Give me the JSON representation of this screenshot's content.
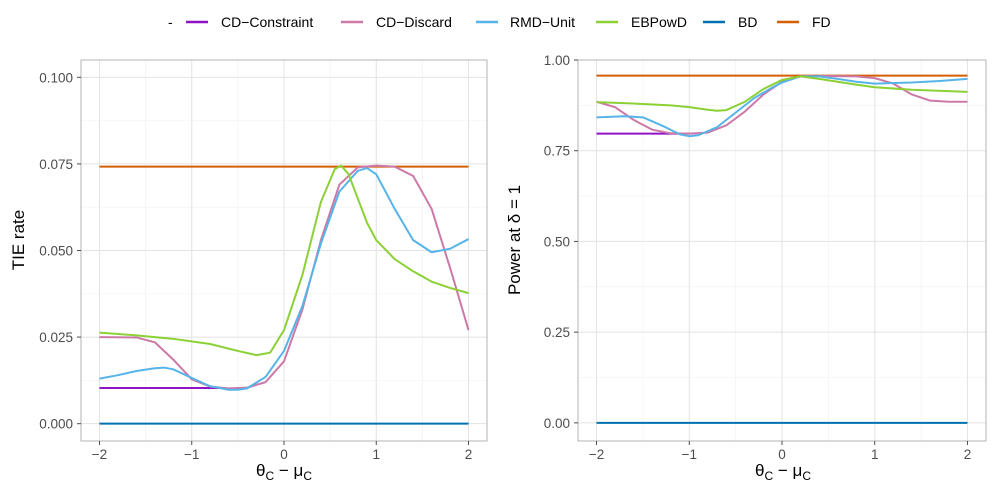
{
  "legend": {
    "title": "-",
    "entries": [
      "CD−Constraint",
      "CD−Discard",
      "RMD−Unit",
      "EBPowD",
      "BD",
      "FD"
    ]
  },
  "chart_data": [
    {
      "type": "line",
      "ylabel": "TIE rate",
      "xlabel_main": "θ",
      "xlabel_main_sub": "C",
      "xlabel_minus": " − μ",
      "xlabel_minus_sub": "C",
      "xlim": [
        -2.2,
        2.2
      ],
      "ylim": [
        -0.005,
        0.105
      ],
      "xticks": [
        -2,
        -1,
        0,
        1,
        2
      ],
      "xtick_labels": [
        "−2",
        "−1",
        "0",
        "1",
        "2"
      ],
      "yticks": [
        0,
        0.025,
        0.05,
        0.075,
        0.1
      ],
      "ytick_labels": [
        "0.000",
        "0.025",
        "0.050",
        "0.075",
        "0.100"
      ],
      "grid": true,
      "series": [
        {
          "name": "FD",
          "color": "#D55E00",
          "x": [
            -2,
            2
          ],
          "y": [
            0.0742,
            0.0742
          ]
        },
        {
          "name": "BD",
          "color": "#0072B2",
          "x": [
            -2,
            2
          ],
          "y": [
            0.0,
            0.0
          ]
        },
        {
          "name": "CD−Constraint",
          "color": "#9013C6",
          "x": [
            -2,
            -0.7
          ],
          "y": [
            0.0103,
            0.0103
          ]
        },
        {
          "name": "CD−Discard",
          "color": "#CC79A7",
          "x": [
            -2,
            -1.6,
            -1.4,
            -1.2,
            -1.0,
            -0.8,
            -0.6,
            -0.4,
            -0.2,
            0,
            0.2,
            0.4,
            0.6,
            0.8,
            1.0,
            1.2,
            1.4,
            1.6,
            1.8,
            2.0
          ],
          "y": [
            0.025,
            0.0249,
            0.0235,
            0.0185,
            0.0128,
            0.0107,
            0.0102,
            0.0104,
            0.012,
            0.018,
            0.033,
            0.053,
            0.069,
            0.074,
            0.0745,
            0.0742,
            0.0715,
            0.062,
            0.045,
            0.027
          ]
        },
        {
          "name": "RMD−Unit",
          "color": "#56B4E9",
          "x": [
            -2,
            -1.8,
            -1.6,
            -1.4,
            -1.3,
            -1.2,
            -1.0,
            -0.8,
            -0.6,
            -0.5,
            -0.4,
            -0.2,
            0,
            0.2,
            0.4,
            0.6,
            0.8,
            0.9,
            1.0,
            1.2,
            1.4,
            1.6,
            1.8,
            2.0
          ],
          "y": [
            0.013,
            0.014,
            0.0152,
            0.016,
            0.0162,
            0.0157,
            0.0132,
            0.0108,
            0.0098,
            0.0098,
            0.0102,
            0.0135,
            0.021,
            0.034,
            0.052,
            0.067,
            0.073,
            0.0738,
            0.072,
            0.062,
            0.053,
            0.0495,
            0.0505,
            0.0533
          ]
        },
        {
          "name": "EBPowD",
          "color": "#8BD135",
          "x": [
            -2,
            -1.6,
            -1.2,
            -0.8,
            -0.5,
            -0.3,
            -0.15,
            0,
            0.2,
            0.4,
            0.55,
            0.62,
            0.7,
            0.8,
            0.9,
            1.0,
            1.2,
            1.4,
            1.6,
            1.8,
            2.0
          ],
          "y": [
            0.0263,
            0.0255,
            0.0245,
            0.023,
            0.021,
            0.0198,
            0.0205,
            0.027,
            0.043,
            0.064,
            0.0735,
            0.0745,
            0.072,
            0.065,
            0.058,
            0.053,
            0.0475,
            0.044,
            0.041,
            0.0392,
            0.0377
          ]
        }
      ]
    },
    {
      "type": "line",
      "ylabel": "Power at δ = 1",
      "xlabel_main": "θ",
      "xlabel_main_sub": "C",
      "xlabel_minus": " − μ",
      "xlabel_minus_sub": "C",
      "xlim": [
        -2.2,
        2.2
      ],
      "ylim": [
        -0.05,
        1.0
      ],
      "xticks": [
        -2,
        -1,
        0,
        1,
        2
      ],
      "xtick_labels": [
        "−2",
        "−1",
        "0",
        "1",
        "2"
      ],
      "yticks": [
        0,
        0.25,
        0.5,
        0.75,
        1.0
      ],
      "ytick_labels": [
        "0.00",
        "0.25",
        "0.50",
        "0.75",
        "1.00"
      ],
      "grid": true,
      "series": [
        {
          "name": "FD",
          "color": "#D55E00",
          "x": [
            -2,
            2
          ],
          "y": [
            0.957,
            0.957
          ]
        },
        {
          "name": "BD",
          "color": "#0072B2",
          "x": [
            -2,
            2
          ],
          "y": [
            0.0,
            0.0
          ]
        },
        {
          "name": "CD−Constraint",
          "color": "#9013C6",
          "x": [
            -2,
            -1.0
          ],
          "y": [
            0.797,
            0.797
          ]
        },
        {
          "name": "CD−Discard",
          "color": "#CC79A7",
          "x": [
            -2,
            -1.8,
            -1.6,
            -1.4,
            -1.2,
            -1.0,
            -0.8,
            -0.6,
            -0.4,
            -0.2,
            0,
            0.2,
            0.5,
            0.8,
            1.0,
            1.2,
            1.4,
            1.6,
            1.8,
            2.0
          ],
          "y": [
            0.885,
            0.87,
            0.835,
            0.808,
            0.798,
            0.797,
            0.8,
            0.82,
            0.858,
            0.905,
            0.94,
            0.955,
            0.956,
            0.955,
            0.95,
            0.935,
            0.905,
            0.888,
            0.885,
            0.885
          ]
        },
        {
          "name": "RMD−Unit",
          "color": "#56B4E9",
          "x": [
            -2,
            -1.7,
            -1.5,
            -1.3,
            -1.1,
            -1.0,
            -0.9,
            -0.7,
            -0.5,
            -0.3,
            -0.1,
            0,
            0.2,
            0.4,
            0.6,
            0.8,
            1.0,
            1.4,
            1.7,
            2.0
          ],
          "y": [
            0.842,
            0.845,
            0.842,
            0.82,
            0.795,
            0.79,
            0.793,
            0.815,
            0.855,
            0.895,
            0.925,
            0.938,
            0.955,
            0.955,
            0.948,
            0.94,
            0.935,
            0.938,
            0.942,
            0.948
          ]
        },
        {
          "name": "EBPowD",
          "color": "#8BD135",
          "x": [
            -2,
            -1.6,
            -1.2,
            -1.0,
            -0.8,
            -0.7,
            -0.6,
            -0.4,
            -0.2,
            0,
            0.2,
            0.4,
            0.6,
            0.8,
            1.0,
            1.4,
            2.0
          ],
          "y": [
            0.884,
            0.88,
            0.875,
            0.87,
            0.863,
            0.86,
            0.862,
            0.885,
            0.92,
            0.945,
            0.955,
            0.948,
            0.94,
            0.932,
            0.925,
            0.918,
            0.912
          ]
        }
      ]
    }
  ]
}
